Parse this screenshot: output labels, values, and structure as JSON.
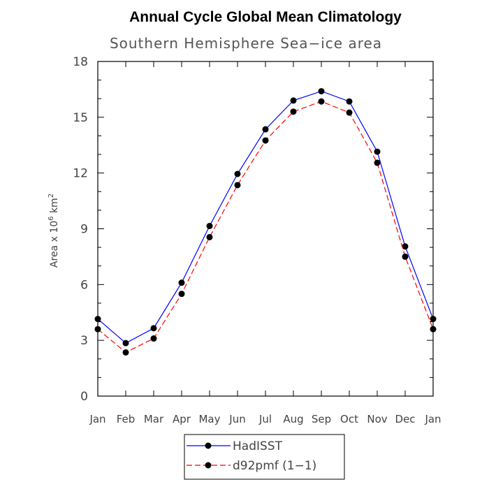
{
  "chart_data": {
    "type": "line",
    "title": "Annual Cycle Global Mean Climatology",
    "subtitle": "Southern Hemisphere Sea−ice area",
    "ylabel_prefix": "Area x 10",
    "ylabel_exp1": "6",
    "ylabel_unit": " km",
    "ylabel_exp2": "2",
    "categories": [
      "Jan",
      "Feb",
      "Mar",
      "Apr",
      "May",
      "Jun",
      "Jul",
      "Aug",
      "Sep",
      "Oct",
      "Nov",
      "Dec",
      "Jan"
    ],
    "ylim": [
      0,
      18
    ],
    "yticks": [
      0,
      3,
      6,
      9,
      12,
      15,
      18
    ],
    "series": [
      {
        "name": "HadISST",
        "color": "#0000ff",
        "dashed": false,
        "values": [
          4.15,
          2.85,
          3.65,
          6.1,
          9.15,
          11.95,
          14.35,
          15.9,
          16.4,
          15.85,
          13.15,
          8.05,
          4.15
        ]
      },
      {
        "name": "d92pmf (1−1)",
        "color": "#ff0000",
        "dashed": true,
        "values": [
          3.6,
          2.35,
          3.1,
          5.5,
          8.55,
          11.35,
          13.75,
          15.3,
          15.85,
          15.25,
          12.55,
          7.5,
          3.6
        ]
      }
    ]
  }
}
